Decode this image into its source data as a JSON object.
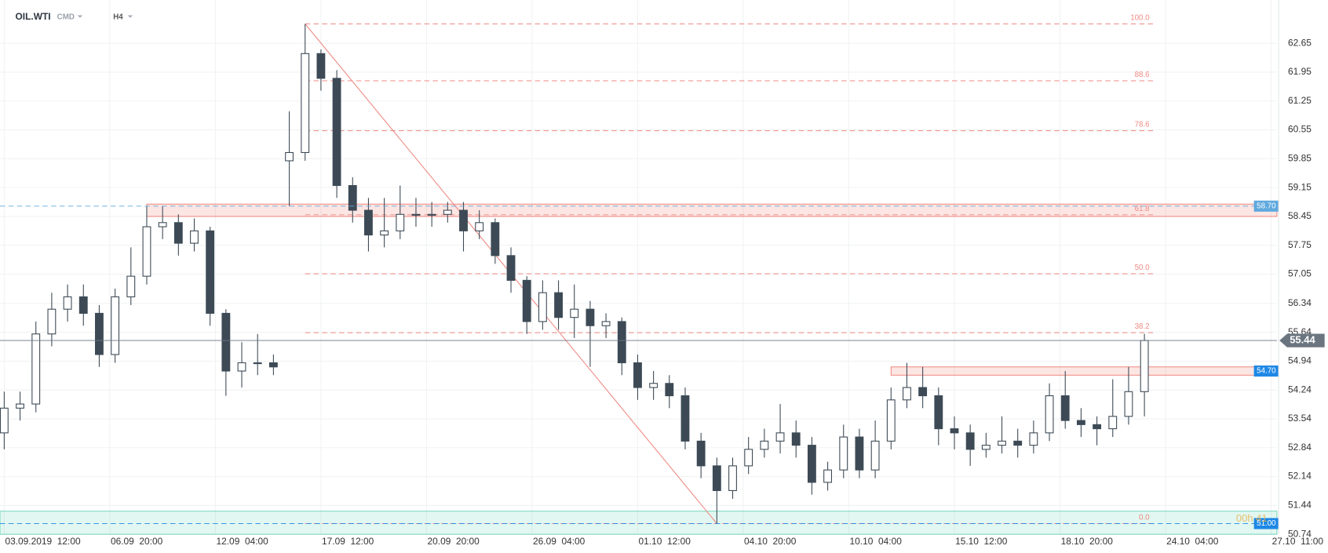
{
  "chart_data": {
    "type": "candlestick",
    "symbol": "OIL.WTI",
    "instrument_class": "CMD",
    "interval": "H4",
    "x": [
      0,
      3,
      6,
      9,
      12,
      15,
      18,
      21,
      24,
      27,
      30,
      33,
      36,
      39,
      42,
      45,
      48,
      51,
      54,
      57,
      60,
      63,
      66,
      69,
      72,
      75,
      78,
      81,
      84,
      87,
      90,
      93,
      96,
      99,
      102,
      105,
      108,
      111,
      114,
      117,
      120,
      123,
      126,
      129,
      132,
      135,
      138,
      141,
      144,
      147,
      150,
      153,
      156,
      159,
      162,
      165,
      168,
      171,
      174,
      177,
      180,
      183,
      186,
      189,
      192,
      195,
      198,
      201,
      204,
      207,
      210,
      213,
      216
    ],
    "open": [
      53.2,
      53.8,
      53.9,
      55.6,
      56.2,
      56.5,
      56.1,
      55.1,
      56.5,
      57.0,
      58.2,
      58.3,
      57.8,
      58.1,
      56.1,
      54.7,
      54.9,
      54.9,
      59.8,
      60.0,
      62.4,
      61.8,
      59.2,
      58.6,
      58.0,
      58.1,
      58.5,
      58.5,
      58.5,
      58.6,
      58.1,
      58.3,
      57.5,
      56.9,
      55.9,
      56.6,
      56.0,
      56.2,
      55.8,
      55.9,
      54.9,
      54.3,
      54.4,
      54.1,
      53.0,
      52.4,
      51.8,
      52.4,
      52.8,
      53.0,
      53.2,
      52.9,
      52.0,
      52.3,
      53.1,
      52.3,
      53.0,
      54.0,
      54.3,
      54.1,
      53.3,
      53.2,
      52.8,
      52.9,
      53.0,
      52.9,
      53.2,
      54.1,
      53.5,
      53.4,
      53.3,
      53.6,
      54.2
    ],
    "high": [
      54.2,
      54.2,
      55.9,
      56.6,
      56.8,
      56.8,
      56.3,
      56.7,
      57.7,
      58.7,
      58.7,
      58.5,
      58.4,
      58.2,
      56.2,
      55.4,
      55.6,
      55.1,
      61.0,
      63.12,
      62.5,
      62.0,
      59.4,
      58.9,
      58.9,
      59.2,
      58.9,
      58.8,
      58.8,
      58.8,
      58.6,
      58.4,
      57.7,
      57.0,
      56.9,
      56.9,
      56.8,
      56.4,
      56.1,
      56.0,
      55.1,
      54.7,
      54.6,
      54.3,
      53.2,
      52.6,
      52.6,
      53.1,
      53.3,
      53.9,
      53.5,
      53.1,
      52.5,
      53.4,
      53.3,
      53.5,
      54.3,
      54.9,
      54.8,
      54.3,
      53.6,
      53.4,
      53.2,
      53.6,
      53.3,
      53.5,
      54.4,
      54.7,
      53.8,
      53.6,
      54.5,
      54.8,
      55.6
    ],
    "low": [
      52.8,
      53.5,
      53.7,
      55.3,
      55.9,
      55.8,
      54.8,
      54.9,
      56.3,
      56.8,
      57.9,
      57.5,
      57.6,
      55.8,
      54.1,
      54.3,
      54.6,
      54.6,
      58.7,
      59.8,
      61.5,
      58.9,
      58.3,
      57.6,
      57.7,
      57.9,
      58.2,
      58.2,
      58.3,
      57.6,
      57.9,
      57.3,
      56.6,
      55.6,
      55.7,
      55.7,
      55.5,
      54.8,
      55.5,
      54.6,
      54.0,
      54.0,
      53.8,
      52.8,
      52.1,
      51.0,
      51.6,
      52.2,
      52.6,
      52.7,
      52.6,
      51.7,
      51.8,
      52.1,
      52.1,
      52.1,
      52.8,
      53.8,
      53.8,
      52.9,
      52.8,
      52.4,
      52.6,
      52.7,
      52.6,
      52.7,
      53.0,
      53.3,
      53.1,
      52.9,
      53.1,
      53.4,
      53.6
    ],
    "close": [
      53.8,
      53.9,
      55.6,
      56.2,
      56.5,
      56.1,
      55.1,
      56.5,
      57.0,
      58.2,
      58.3,
      57.8,
      58.1,
      56.1,
      54.7,
      54.9,
      54.9,
      54.8,
      60.0,
      62.4,
      61.8,
      59.2,
      58.6,
      58.0,
      58.1,
      58.5,
      58.5,
      58.5,
      58.6,
      58.1,
      58.3,
      57.5,
      56.9,
      55.9,
      56.6,
      56.0,
      56.2,
      55.8,
      55.9,
      54.9,
      54.3,
      54.4,
      54.1,
      53.0,
      52.4,
      51.8,
      52.4,
      52.8,
      53.0,
      53.2,
      52.9,
      52.0,
      52.3,
      53.1,
      52.3,
      53.0,
      54.0,
      54.3,
      54.1,
      53.3,
      53.2,
      52.8,
      52.9,
      53.0,
      52.9,
      53.2,
      54.1,
      53.5,
      53.4,
      53.3,
      53.6,
      54.2,
      55.44
    ],
    "up_color": "#ffffff",
    "down_color": "#3d4a56",
    "xlim": [
      -0.8,
      241.1
    ],
    "ylim": [
      50.74,
      63.7
    ],
    "yticks": [
      62.65,
      61.95,
      61.25,
      60.55,
      59.85,
      59.15,
      58.45,
      57.75,
      57.05,
      56.34,
      55.64,
      54.94,
      54.24,
      53.54,
      52.84,
      52.14,
      51.44,
      50.74
    ],
    "xticks": [
      {
        "value": 0,
        "label": "03.09.2019  12:00"
      },
      {
        "value": 20,
        "label": "06.09  20:00"
      },
      {
        "value": 40,
        "label": "12.09  04:00"
      },
      {
        "value": 60,
        "label": "17.09  12:00"
      },
      {
        "value": 80,
        "label": "20.09  20:00"
      },
      {
        "value": 100,
        "label": "26.09  04:00"
      },
      {
        "value": 120,
        "label": "01.10  12:00"
      },
      {
        "value": 140,
        "label": "04.10  20:00"
      },
      {
        "value": 160,
        "label": "10.10  04:00"
      },
      {
        "value": 180,
        "label": "15.10  12:00"
      },
      {
        "value": 200,
        "label": "18.10  20:00"
      },
      {
        "value": 220,
        "label": "24.10  04:00"
      },
      {
        "value": 240,
        "label": "27.10  11:00"
      }
    ],
    "grid": true,
    "fib_color": "#ee8a84",
    "fib_levels": [
      {
        "value": 63.12,
        "label": "100.0"
      },
      {
        "value": 61.74,
        "label": "88.6"
      },
      {
        "value": 60.53,
        "label": "78.6"
      },
      {
        "value": 58.49,
        "label": "61.8"
      },
      {
        "value": 57.06,
        "label": "50.0"
      },
      {
        "value": 55.63,
        "label": "38.2"
      },
      {
        "value": 51.0,
        "label": "0.0"
      }
    ],
    "zones": [
      {
        "low": 58.45,
        "high": 58.75,
        "start": 27,
        "color": "#e9574a"
      },
      {
        "low": 54.6,
        "high": 54.8,
        "start": 168,
        "color": "#e9574a"
      },
      {
        "low": 50.74,
        "high": 51.3,
        "start": -0.8,
        "color": "#3cc8a0"
      }
    ],
    "price_tags": [
      {
        "value": 58.7,
        "label": "58.70",
        "color": "#5fa9de"
      },
      {
        "value": 55.44,
        "label": "55.44",
        "color": "#6b7580"
      },
      {
        "value": 54.7,
        "label": "54.70",
        "color": "#1e88e5"
      },
      {
        "value": 51.0,
        "label": "51.00",
        "color": "#1e88e5"
      }
    ],
    "countdown": "00h 41"
  }
}
